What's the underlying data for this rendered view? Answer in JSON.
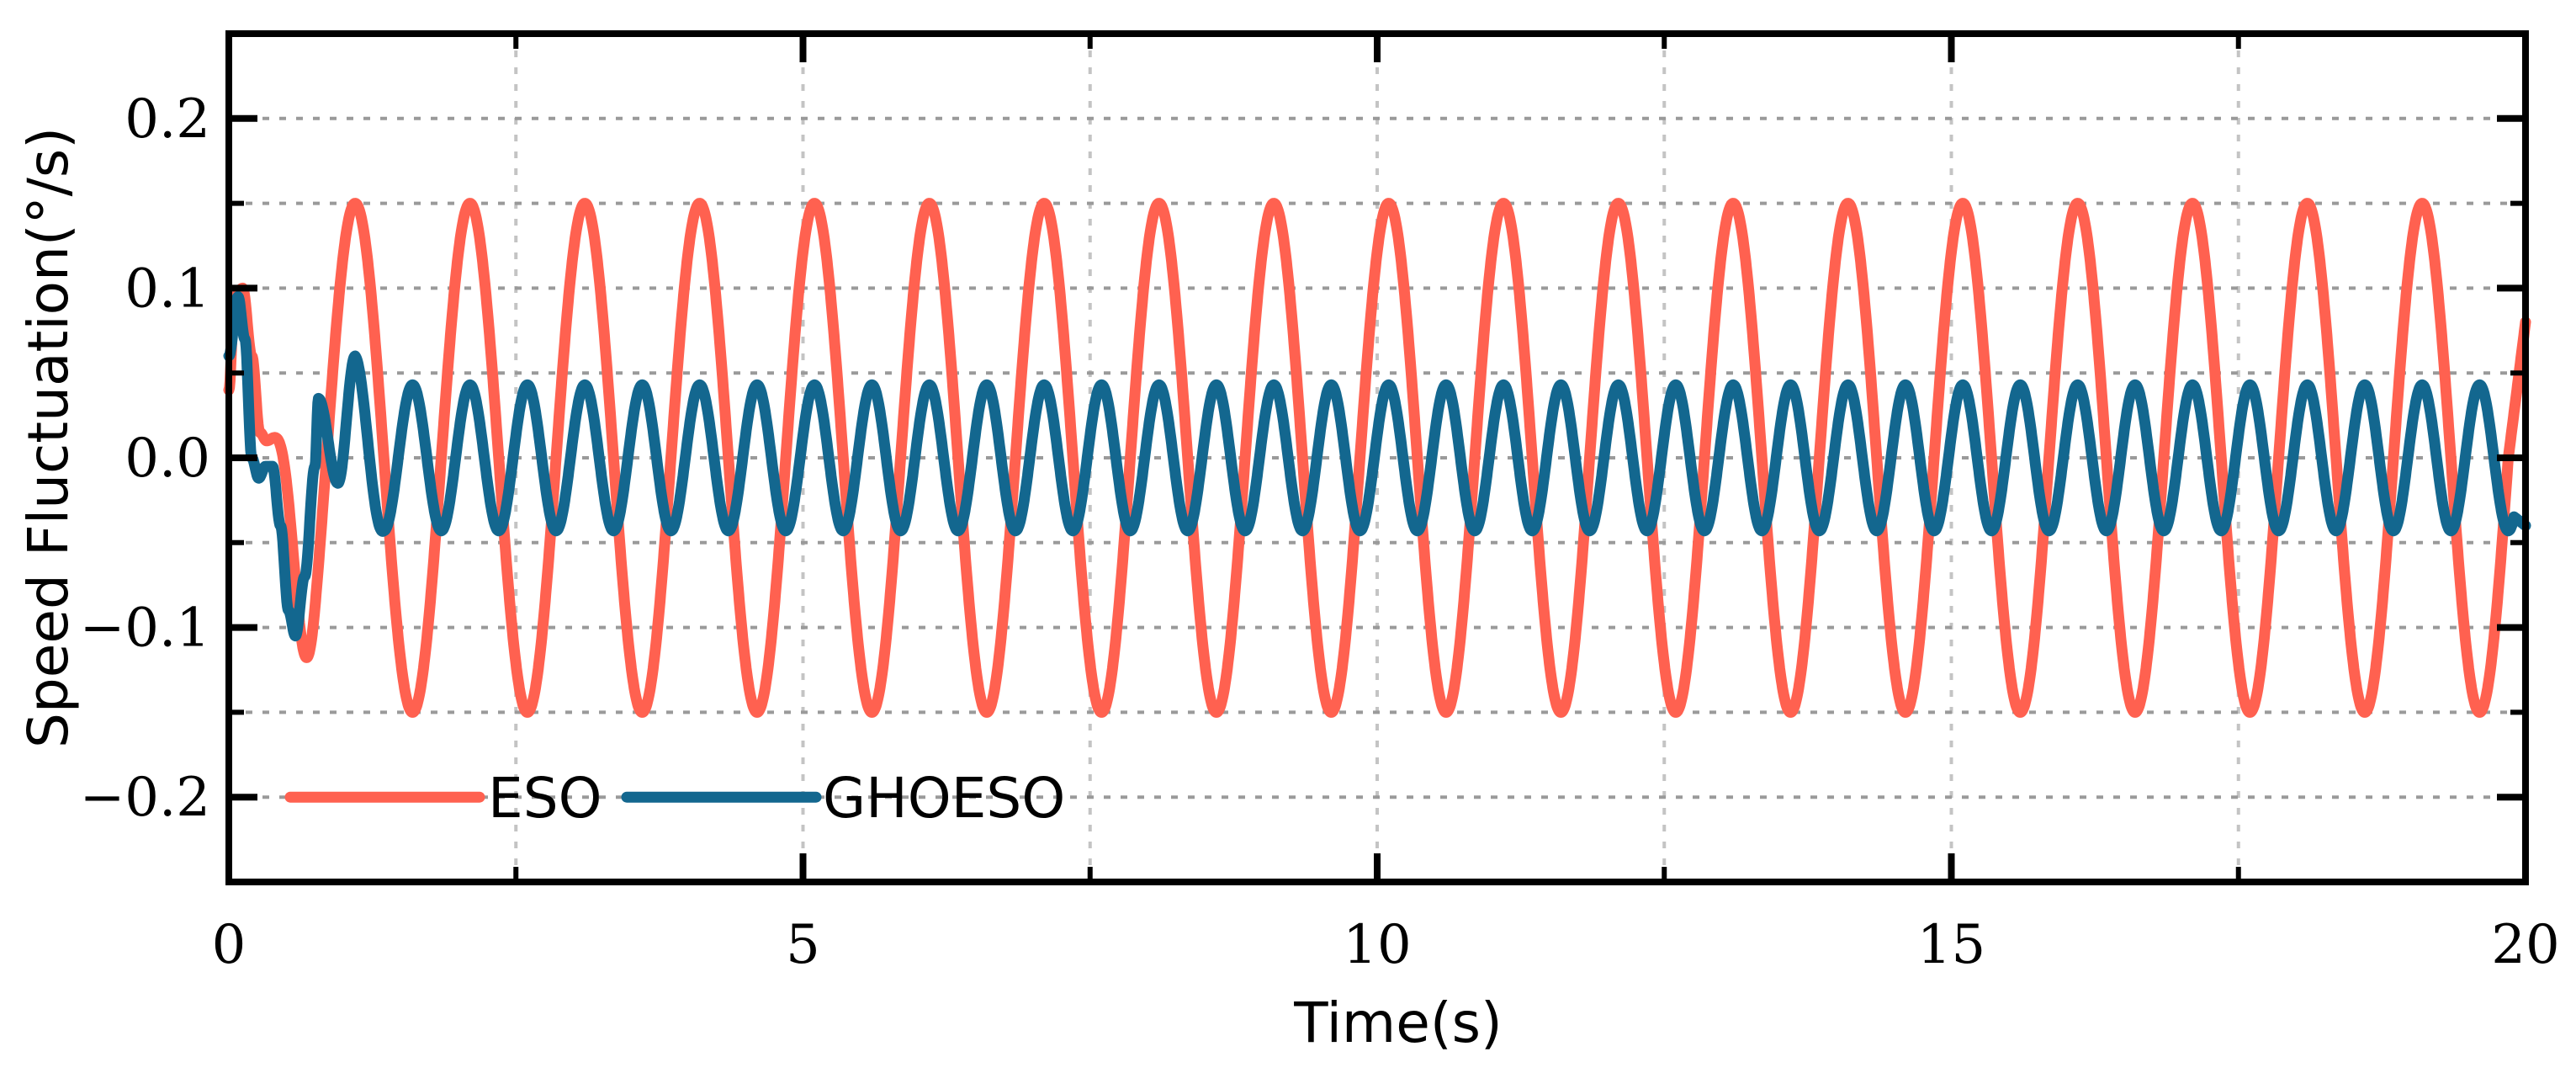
{
  "chart_data": {
    "type": "line",
    "title": "",
    "xlabel": "Time(s)",
    "ylabel": "Speed Fluctuation(°/s)",
    "xlim": [
      0,
      20
    ],
    "ylim": [
      -0.25,
      0.25
    ],
    "x_ticks": [
      0,
      5,
      10,
      15,
      20
    ],
    "x_tick_labels": [
      "0",
      "5",
      "10",
      "15",
      "20"
    ],
    "x_minor_ticks": [
      2.5,
      7.5,
      12.5,
      17.5
    ],
    "y_ticks": [
      -0.2,
      -0.1,
      0.0,
      0.1,
      0.2
    ],
    "y_tick_labels": [
      "−0.2",
      "−0.1",
      "0.0",
      "0.1",
      "0.2"
    ],
    "y_minor_ticks": [
      -0.15,
      -0.05,
      0.05,
      0.15
    ],
    "grid": true,
    "legend_position": "bottom-left",
    "series": [
      {
        "name": "ESO",
        "color": "#ff6150",
        "transient": [
          [
            0,
            0.04
          ],
          [
            0.05,
            0.095
          ],
          [
            0.12,
            0.1
          ],
          [
            0.2,
            0.06
          ],
          [
            0.27,
            0.015
          ],
          [
            0.33,
            0.01
          ],
          [
            0.4,
            0.012
          ]
        ],
        "steady_amplitude": 0.15,
        "steady_period": 1.0,
        "steady_peak_times": [
          1.1,
          2.1,
          3.1,
          4.1,
          5.1,
          6.1,
          7.1,
          8.1,
          9.1,
          10.1,
          11.1,
          12.1,
          13.1,
          14.1,
          15.1,
          16.1,
          17.1,
          18.1,
          19.1
        ],
        "end_value": 0.08
      },
      {
        "name": "GHOESO",
        "color": "#13678f",
        "transient": [
          [
            0,
            0.06
          ],
          [
            0.08,
            0.095
          ],
          [
            0.14,
            0.07
          ],
          [
            0.2,
            0.0
          ],
          [
            0.26,
            -0.012
          ],
          [
            0.32,
            -0.005
          ],
          [
            0.38,
            -0.005
          ],
          [
            0.45,
            -0.04
          ],
          [
            0.52,
            -0.09
          ],
          [
            0.58,
            -0.105
          ],
          [
            0.66,
            -0.07
          ],
          [
            0.75,
            -0.005
          ]
        ],
        "steady_amplitude": 0.043,
        "steady_period": 0.5,
        "early_peaks": [
          [
            0.78,
            0.035
          ],
          [
            0.95,
            -0.015
          ],
          [
            1.1,
            0.06
          ]
        ],
        "end_value": -0.04
      }
    ]
  }
}
